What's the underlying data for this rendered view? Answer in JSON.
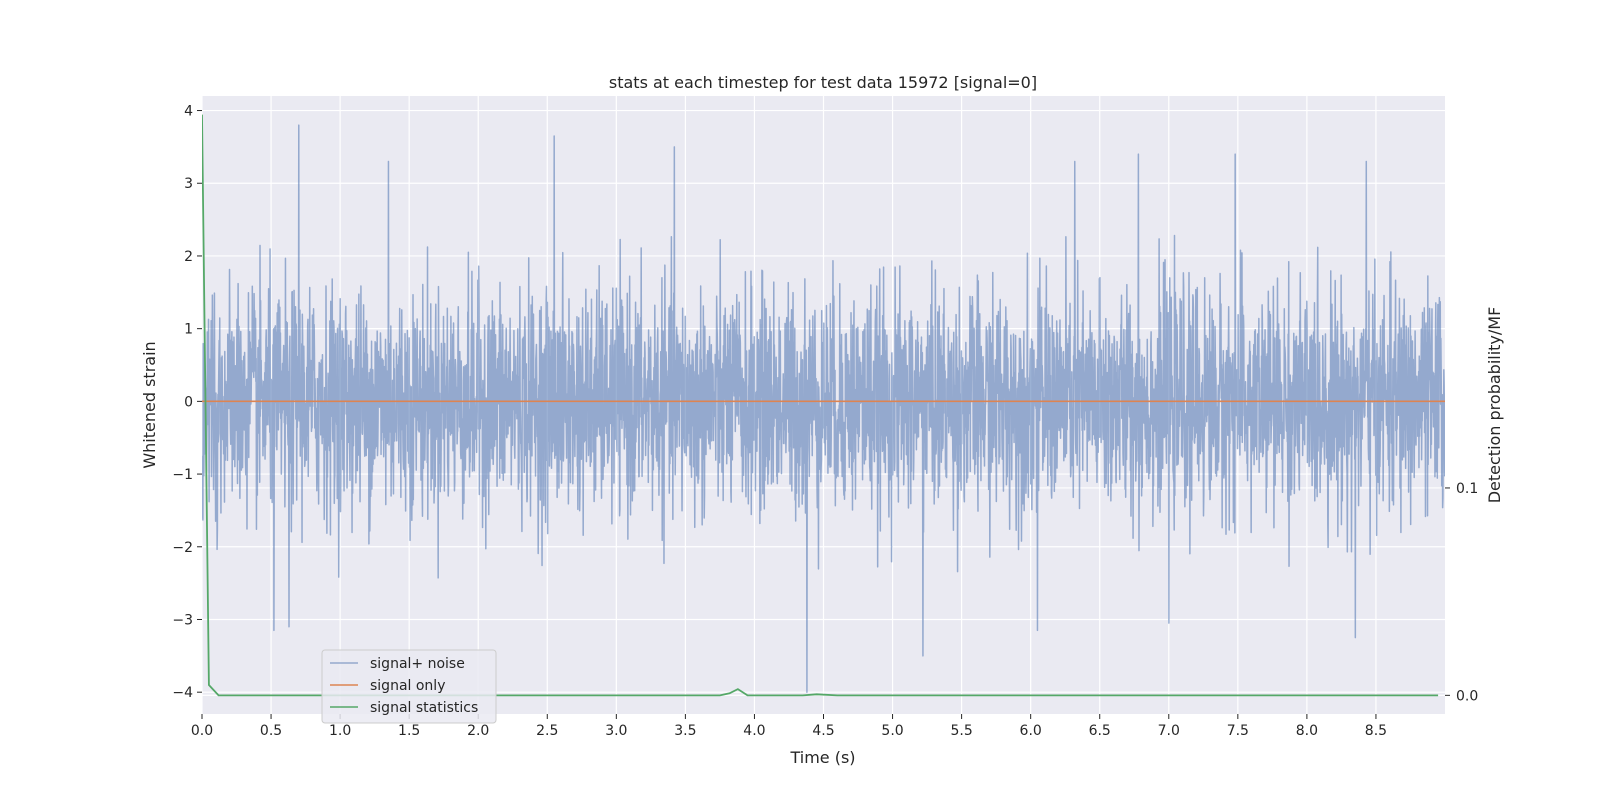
{
  "chart_data": {
    "type": "line",
    "title": "stats at each timestep for test data 15972 [signal=0]",
    "xlabel": "Time (s)",
    "ylabel": "Whitened strain",
    "ylabel_right": "Detection probability/MF",
    "xlim": [
      0.0,
      9.0
    ],
    "ylim": [
      -4.3,
      4.2
    ],
    "ylim_right": [
      -0.009,
      0.289
    ],
    "x_ticks": [
      "0.0",
      "0.5",
      "1.0",
      "1.5",
      "2.0",
      "2.5",
      "3.0",
      "3.5",
      "4.0",
      "4.5",
      "5.0",
      "5.5",
      "6.0",
      "6.5",
      "7.0",
      "7.5",
      "8.0",
      "8.5"
    ],
    "y_ticks": [
      "4",
      "3",
      "2",
      "1",
      "0",
      "−1",
      "−2",
      "−3",
      "−4"
    ],
    "y_ticks_right": [
      "0.1",
      "0.0"
    ],
    "grid": true,
    "legend_position": "lower-left",
    "noise_sigma": 0.75,
    "series": [
      {
        "name": "signal+ noise",
        "color": "#4c72b0",
        "opacity": 0.55,
        "axis": "left",
        "description": "whitened strain noise samples ~N(0,0.75), range about -4.0 to 3.8",
        "peaks": [
          {
            "x": 0.7,
            "y": 3.8
          },
          {
            "x": 1.35,
            "y": 3.3
          },
          {
            "x": 2.55,
            "y": 3.65
          },
          {
            "x": 3.42,
            "y": 3.5
          },
          {
            "x": 6.32,
            "y": 3.3
          },
          {
            "x": 6.78,
            "y": 3.4
          },
          {
            "x": 7.48,
            "y": 3.4
          },
          {
            "x": 8.43,
            "y": 3.3
          },
          {
            "x": 4.38,
            "y": -4.0
          },
          {
            "x": 0.52,
            "y": -3.15
          },
          {
            "x": 0.63,
            "y": -3.1
          },
          {
            "x": 5.22,
            "y": -3.5
          },
          {
            "x": 6.05,
            "y": -3.15
          },
          {
            "x": 7.0,
            "y": -3.05
          },
          {
            "x": 8.35,
            "y": -3.25
          }
        ]
      },
      {
        "name": "signal only",
        "color": "#dd8452",
        "axis": "left",
        "x": [
          0.0,
          9.0
        ],
        "y": [
          0.0,
          0.0
        ]
      },
      {
        "name": "signal statistics",
        "color": "#55a868",
        "axis": "right",
        "x": [
          0.0,
          0.05,
          0.12,
          3.75,
          3.82,
          3.88,
          3.95,
          4.35,
          4.45,
          4.6,
          8.95
        ],
        "y": [
          0.28,
          0.005,
          0.0,
          0.0,
          0.001,
          0.003,
          0.0,
          0.0,
          0.0005,
          0.0,
          0.0
        ]
      }
    ]
  }
}
